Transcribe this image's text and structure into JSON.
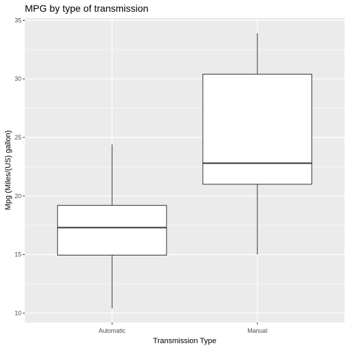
{
  "chart_data": {
    "type": "boxplot",
    "title": "MPG by type of transmission",
    "xlabel": "Transmission Type",
    "ylabel": "Mpg (Miles/(US) gallon)",
    "categories": [
      "Automatic",
      "Manual"
    ],
    "boxes": [
      {
        "category": "Automatic",
        "min": 10.4,
        "q1": 14.95,
        "median": 17.3,
        "q3": 19.2,
        "max": 24.4
      },
      {
        "category": "Manual",
        "min": 15.0,
        "q1": 21.0,
        "median": 22.8,
        "q3": 30.4,
        "max": 33.9
      }
    ],
    "yticks": [
      10,
      15,
      20,
      25,
      30,
      35
    ],
    "ytick_labels": [
      "10",
      "15",
      "20",
      "25",
      "30",
      "35"
    ],
    "ylim": [
      9.2,
      35.2
    ],
    "grid": true,
    "colors": {
      "panel_background": "#ebebeb",
      "grid_major": "#ffffff",
      "box_fill": "#ffffff",
      "box_stroke": "#333333"
    }
  }
}
